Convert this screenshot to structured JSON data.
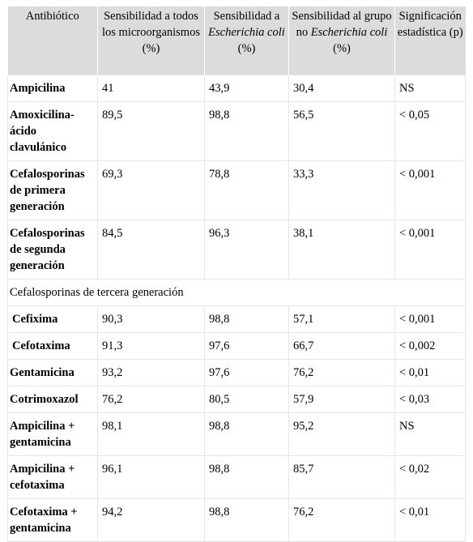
{
  "header": {
    "col1": "Antibiótico",
    "col2": "Sensibilidad a todos los microorganismos (%)",
    "col3_pre": "Sensibilidad a ",
    "col3_it": "Escherichia coli",
    "col3_post": " (%)",
    "col4_pre": "Sensibilidad al grupo no ",
    "col4_it": "Escherichia coli",
    "col4_post": " (%)",
    "col5": "Significación estadística (p)"
  },
  "rows": [
    {
      "name": "Ampicilina",
      "all": "41",
      "ecoli": "43,9",
      "no_ecoli": "30,4",
      "p": "NS"
    },
    {
      "name": "Amoxicilina-ácido clavulánico",
      "all": "89,5",
      "ecoli": "98,8",
      "no_ecoli": "56,5",
      "p": "< 0,05"
    },
    {
      "name": "Cefalosporinas de primera generación",
      "all": "69,3",
      "ecoli": "78,8",
      "no_ecoli": "33,3",
      "p": "< 0,001"
    },
    {
      "name": "Cefalosporinas de segunda generación",
      "all": "84,5",
      "ecoli": "96,3",
      "no_ecoli": "38,1",
      "p": "< 0,001"
    },
    {
      "section": "Cefalosporinas de tercera generación"
    },
    {
      "name": "Cefixima",
      "all": "90,3",
      "ecoli": "98,8",
      "no_ecoli": "57,1",
      "p": "< 0,001",
      "indent": true
    },
    {
      "name": "Cefotaxima",
      "all": "91,3",
      "ecoli": "97,6",
      "no_ecoli": "66,7",
      "p": "< 0,002",
      "indent": true
    },
    {
      "name": "Gentamicina",
      "all": "93,2",
      "ecoli": "97,6",
      "no_ecoli": "76,2",
      "p": "< 0,01"
    },
    {
      "name": "Cotrimoxazol",
      "all": "76,2",
      "ecoli": "80,5",
      "no_ecoli": "57,9",
      "p": "< 0,03"
    },
    {
      "name": "Ampicilina + gentamicina",
      "all": "98,1",
      "ecoli": "98,8",
      "no_ecoli": "95,2",
      "p": "NS"
    },
    {
      "name": "Ampicilina + cefotaxima",
      "all": "96,1",
      "ecoli": "98,8",
      "no_ecoli": "85,7",
      "p": "< 0,02"
    },
    {
      "name": "Cefotaxima + gentamicina",
      "all": "94,2",
      "ecoli": "98,8",
      "no_ecoli": "76,2",
      "p": "< 0,01"
    }
  ]
}
